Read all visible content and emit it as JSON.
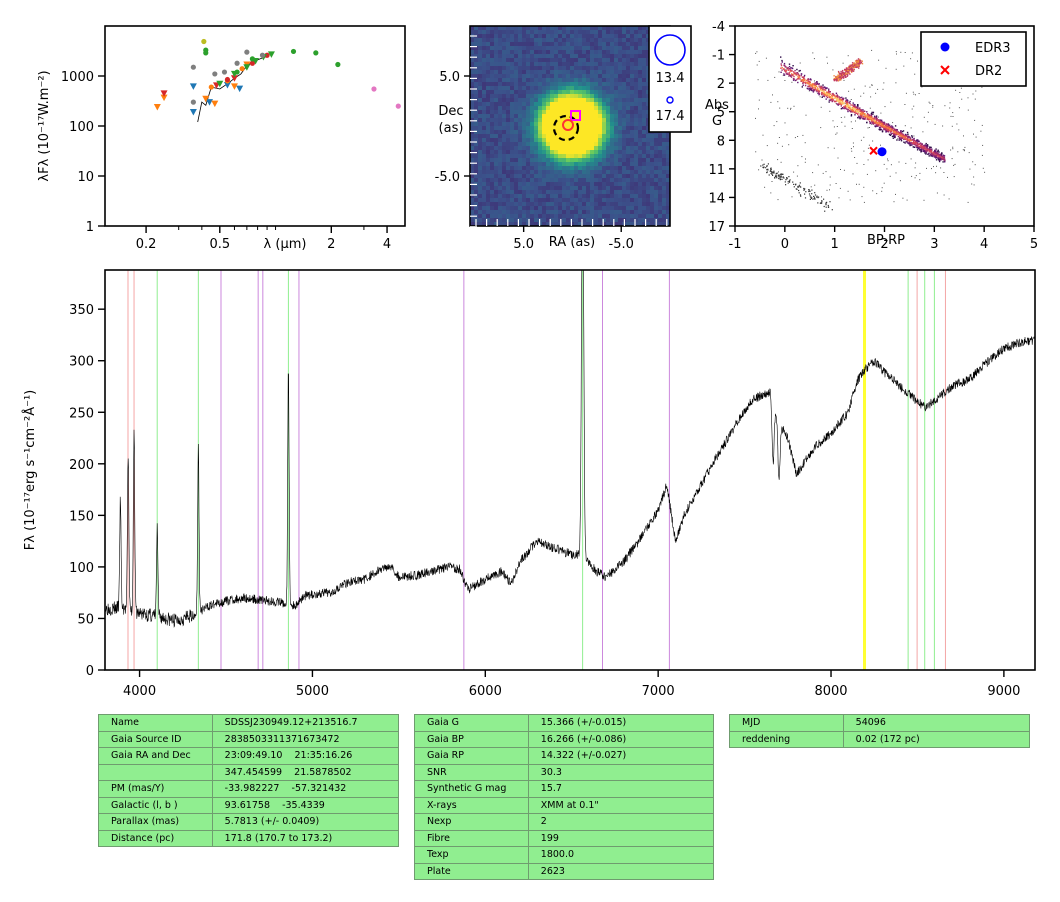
{
  "colors": {
    "spectrum": "#000000",
    "line_red": "#f4a6a6",
    "line_green": "#90ee90",
    "line_purple": "#cc88dd",
    "telluric_band": "#ffff33",
    "table_bg": "#90ee90",
    "edr3": "#0000ff",
    "dr2": "#ff0000"
  },
  "chart_data": [
    {
      "id": "sed",
      "type": "scatter",
      "xlabel": "λ (μm)",
      "ylabel": "λFλ (10⁻¹⁷W.m⁻²)",
      "xscale": "log",
      "yscale": "log",
      "xlim": [
        0.12,
        5.0
      ],
      "ylim": [
        1,
        10000
      ],
      "xticks": [
        "0.2",
        "0.5",
        "2",
        "4"
      ],
      "xtick_values": [
        0.2,
        0.5,
        2,
        4
      ],
      "yticks": [
        "1",
        "10",
        "100",
        "1000"
      ],
      "ytick_values": [
        1,
        10,
        100,
        1000
      ],
      "series": [
        {
          "color": "#1f77b4",
          "marker": "triangle-down",
          "points": [
            [
              0.36,
              620
            ],
            [
              0.36,
              190
            ],
            [
              0.44,
              300
            ],
            [
              0.55,
              660
            ],
            [
              0.64,
              560
            ]
          ]
        },
        {
          "color": "#ff7f0e",
          "marker": "triangle-down",
          "points": [
            [
              0.23,
              240
            ],
            [
              0.25,
              370
            ],
            [
              0.42,
              350
            ],
            [
              0.47,
              280
            ],
            [
              0.6,
              620
            ],
            [
              0.7,
              1700
            ]
          ]
        },
        {
          "color": "#ff7f0e",
          "marker": "circle",
          "points": [
            [
              0.45,
              600
            ],
            [
              0.55,
              800
            ],
            [
              0.66,
              1400
            ]
          ]
        },
        {
          "color": "#d62728",
          "marker": "triangle-down",
          "points": [
            [
              0.25,
              450
            ],
            [
              0.48,
              650
            ],
            [
              0.6,
              900
            ]
          ]
        },
        {
          "color": "#d62728",
          "marker": "circle",
          "points": [
            [
              0.55,
              850
            ],
            [
              0.75,
              1800
            ],
            [
              0.9,
              2600
            ]
          ]
        },
        {
          "color": "#2ca02c",
          "marker": "triangle-down",
          "points": [
            [
              0.5,
              700
            ],
            [
              0.6,
              1100
            ],
            [
              0.7,
              1500
            ],
            [
              0.78,
              2000
            ],
            [
              0.86,
              2400
            ],
            [
              0.95,
              2700
            ]
          ]
        },
        {
          "color": "#2ca02c",
          "marker": "circle",
          "points": [
            [
              0.42,
              2900
            ],
            [
              0.42,
              3300
            ],
            [
              0.62,
              1200
            ],
            [
              0.75,
              2200
            ],
            [
              1.25,
              3100
            ],
            [
              1.65,
              2900
            ],
            [
              2.17,
              1700
            ]
          ]
        },
        {
          "color": "#7f7f7f",
          "marker": "circle",
          "points": [
            [
              0.36,
              1500
            ],
            [
              0.36,
              300
            ],
            [
              0.47,
              1100
            ],
            [
              0.53,
              1200
            ],
            [
              0.62,
              1800
            ],
            [
              0.7,
              3000
            ],
            [
              0.85,
              2600
            ]
          ]
        },
        {
          "color": "#bcbd22",
          "marker": "circle",
          "points": [
            [
              0.41,
              4900
            ]
          ]
        },
        {
          "color": "#e377c2",
          "marker": "circle",
          "points": [
            [
              3.4,
              550
            ],
            [
              4.6,
              250
            ]
          ]
        }
      ],
      "spectrum_segments": [
        [
          0.38,
          120
        ],
        [
          0.4,
          300
        ],
        [
          0.42,
          260
        ],
        [
          0.45,
          600
        ],
        [
          0.5,
          550
        ],
        [
          0.55,
          700
        ],
        [
          0.6,
          900
        ],
        [
          0.65,
          1100
        ],
        [
          0.7,
          1600
        ],
        [
          0.75,
          1900
        ],
        [
          0.8,
          2100
        ],
        [
          0.85,
          2300
        ],
        [
          0.92,
          2500
        ]
      ]
    },
    {
      "id": "image",
      "type": "heatmap",
      "xlabel": "RA (as)",
      "ylabel": "Dec (as)",
      "xlim": [
        10.5,
        -10.0
      ],
      "ylim": [
        -10.0,
        10.0
      ],
      "xticks": [
        "5.0",
        "-5.0"
      ],
      "xtick_values": [
        5.0,
        -5.0
      ],
      "yticks": [
        "5.0",
        "-5.0"
      ],
      "ytick_values": [
        5.0,
        -5.0
      ],
      "source_center": [
        0.0,
        0.0
      ],
      "source_sigma": 1.8,
      "legend_mags": [
        "13.4",
        "17.4"
      ]
    },
    {
      "id": "hrd",
      "type": "scatter",
      "xlabel": "BP-RP",
      "ylabel": "Abs G",
      "xlim": [
        -1,
        5
      ],
      "ylim": [
        17,
        -4
      ],
      "xticks": [
        "-1",
        "0",
        "1",
        "2",
        "3",
        "4",
        "5"
      ],
      "xtick_values": [
        -1,
        0,
        1,
        2,
        3,
        4,
        5
      ],
      "yticks": [
        "-4",
        "-1",
        "2",
        "5",
        "8",
        "11",
        "14",
        "17"
      ],
      "ytick_values": [
        -4,
        -1,
        2,
        5,
        8,
        11,
        14,
        17
      ],
      "legend": [
        {
          "label": "EDR3",
          "color": "#0000ff",
          "marker": "circle"
        },
        {
          "label": "DR2",
          "color": "#ff0000",
          "marker": "x"
        }
      ],
      "target_edr3": [
        1.95,
        9.2
      ],
      "target_dr2": [
        1.78,
        9.1
      ]
    },
    {
      "id": "spectrum",
      "type": "line",
      "xlabel": "",
      "ylabel": "Fλ (10⁻¹⁷erg s⁻¹cm⁻²Å⁻¹)",
      "xlim": [
        3800,
        9180
      ],
      "ylim": [
        0,
        388
      ],
      "xticks": [
        "4000",
        "5000",
        "6000",
        "7000",
        "8000",
        "9000"
      ],
      "xtick_values": [
        4000,
        5000,
        6000,
        7000,
        8000,
        9000
      ],
      "yticks": [
        "0",
        "50",
        "100",
        "150",
        "200",
        "250",
        "300",
        "350"
      ],
      "ytick_values": [
        0,
        50,
        100,
        150,
        200,
        250,
        300,
        350
      ],
      "continuum": [
        [
          3800,
          60
        ],
        [
          3900,
          60
        ],
        [
          4000,
          55
        ],
        [
          4100,
          52
        ],
        [
          4200,
          48
        ],
        [
          4300,
          52
        ],
        [
          4400,
          62
        ],
        [
          4500,
          67
        ],
        [
          4600,
          70
        ],
        [
          4700,
          68
        ],
        [
          4800,
          66
        ],
        [
          4900,
          62
        ],
        [
          4950,
          72
        ],
        [
          5100,
          75
        ],
        [
          5200,
          85
        ],
        [
          5300,
          88
        ],
        [
          5400,
          98
        ],
        [
          5450,
          102
        ],
        [
          5500,
          90
        ],
        [
          5600,
          92
        ],
        [
          5700,
          96
        ],
        [
          5800,
          100
        ],
        [
          5850,
          98
        ],
        [
          5900,
          78
        ],
        [
          6000,
          88
        ],
        [
          6100,
          96
        ],
        [
          6150,
          83
        ],
        [
          6200,
          105
        ],
        [
          6300,
          125
        ],
        [
          6400,
          118
        ],
        [
          6500,
          112
        ],
        [
          6550,
          112
        ],
        [
          6650,
          95
        ],
        [
          6700,
          90
        ],
        [
          6800,
          105
        ],
        [
          6900,
          128
        ],
        [
          7000,
          155
        ],
        [
          7050,
          180
        ],
        [
          7100,
          125
        ],
        [
          7150,
          150
        ],
        [
          7250,
          180
        ],
        [
          7350,
          210
        ],
        [
          7450,
          238
        ],
        [
          7550,
          263
        ],
        [
          7650,
          270
        ],
        [
          7700,
          240
        ],
        [
          7750,
          225
        ],
        [
          7800,
          190
        ],
        [
          7900,
          215
        ],
        [
          8000,
          230
        ],
        [
          8100,
          250
        ],
        [
          8150,
          280
        ],
        [
          8200,
          292
        ],
        [
          8250,
          300
        ],
        [
          8300,
          290
        ],
        [
          8400,
          275
        ],
        [
          8450,
          268
        ],
        [
          8500,
          260
        ],
        [
          8550,
          255
        ],
        [
          8650,
          268
        ],
        [
          8700,
          275
        ],
        [
          8800,
          282
        ],
        [
          8900,
          298
        ],
        [
          9000,
          312
        ],
        [
          9100,
          318
        ],
        [
          9180,
          320
        ]
      ],
      "emission_lines": [
        [
          3889,
          105
        ],
        [
          3934,
          150
        ],
        [
          3968,
          175
        ],
        [
          4102,
          85
        ],
        [
          4340,
          160
        ],
        [
          4861,
          230
        ],
        [
          6563,
          440
        ]
      ],
      "absorption_features": [
        [
          7665,
          60
        ],
        [
          7699,
          55
        ],
        [
          8183,
          -30
        ],
        [
          8195,
          -30
        ]
      ],
      "lines_red": [
        3933,
        3968,
        8498,
        8662
      ],
      "lines_green": [
        4102,
        4340,
        4861,
        6563,
        8446,
        8542,
        8598
      ],
      "lines_purple": [
        4471,
        4686,
        4713,
        4922,
        5876,
        6678,
        7065
      ],
      "telluric_band": [
        8185,
        8200
      ]
    }
  ],
  "tables": {
    "t1": [
      [
        "Name",
        "SDSSJ230949.12+213516.7"
      ],
      [
        "Gaia Source ID",
        "2838503311371673472"
      ],
      [
        "Gaia RA and Dec",
        "23:09:49.10    21:35:16.26"
      ],
      [
        "",
        "347.454599    21.5878502"
      ],
      [
        "PM (mas/Y)",
        "-33.982227    -57.321432"
      ],
      [
        "Galactic (l, b )",
        "93.61758    -35.4339"
      ],
      [
        "Parallax (mas)",
        "5.7813 (+/- 0.0409)"
      ],
      [
        "Distance (pc)",
        "171.8 (170.7 to 173.2)"
      ]
    ],
    "t2": [
      [
        "Gaia G",
        "15.366 (+/-0.015)"
      ],
      [
        "Gaia BP",
        "16.266 (+/-0.086)"
      ],
      [
        "Gaia RP",
        "14.322 (+/-0.027)"
      ],
      [
        "SNR",
        "30.3"
      ],
      [
        "Synthetic G mag",
        "15.7"
      ],
      [
        "X-rays",
        "XMM at 0.1\""
      ],
      [
        "Nexp",
        "2"
      ],
      [
        "Fibre",
        "199"
      ],
      [
        "Texp",
        "1800.0"
      ],
      [
        "Plate",
        "2623"
      ]
    ],
    "t3": [
      [
        "MJD",
        "54096"
      ],
      [
        "reddening",
        "0.02 (172 pc)"
      ]
    ]
  }
}
